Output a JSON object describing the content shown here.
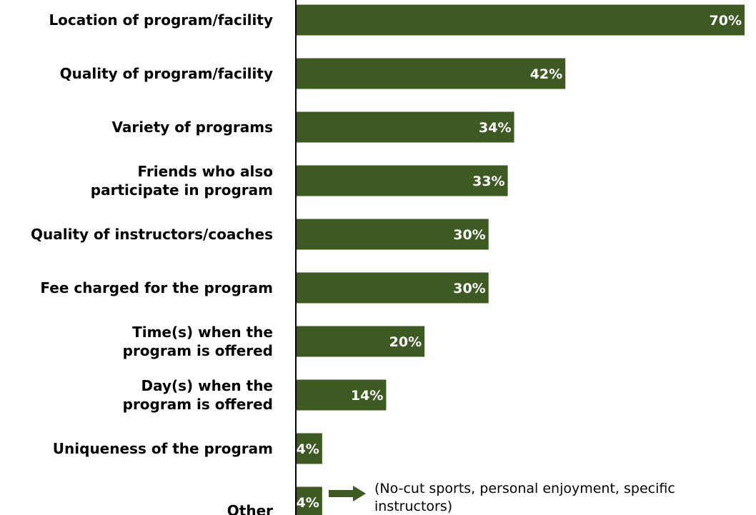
{
  "chart_data": {
    "type": "bar",
    "orientation": "horizontal",
    "categories": [
      "Location of program/facility",
      "Quality of program/facility",
      "Variety of programs",
      "Friends who also participate in program",
      "Quality of instructors/coaches",
      "Fee charged for the program",
      "Time(s) when the program is offered",
      "Day(s) when the program is offered",
      "Uniqueness of the program",
      "Other"
    ],
    "category_lines": [
      [
        "Location of program/facility"
      ],
      [
        "Quality of program/facility"
      ],
      [
        "Variety of programs"
      ],
      [
        "Friends who also",
        "participate in program"
      ],
      [
        "Quality of instructors/coaches"
      ],
      [
        "Fee charged for the program"
      ],
      [
        "Time(s) when the",
        "program is offered"
      ],
      [
        "Day(s) when the",
        "program is offered"
      ],
      [
        "Uniqueness of the program"
      ],
      [
        "Other"
      ]
    ],
    "values": [
      70,
      42,
      34,
      33,
      30,
      30,
      20,
      14,
      4,
      4
    ],
    "value_labels": [
      "70%",
      "42%",
      "34%",
      "33%",
      "30%",
      "30%",
      "20%",
      "14%",
      "4%",
      "4%"
    ],
    "xlim": [
      0,
      70
    ],
    "bar_color": "#3d5a22",
    "grid": false,
    "legend": "none",
    "annotation": {
      "target_category": "Other",
      "lines": [
        "(No-cut sports, personal enjoyment, specific",
        "instructors)"
      ]
    }
  }
}
